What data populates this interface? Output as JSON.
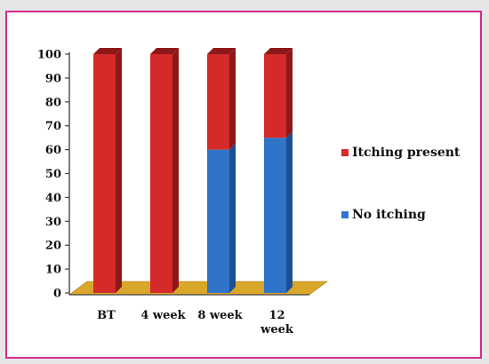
{
  "chart_data": {
    "type": "bar",
    "stacked": true,
    "three_d": true,
    "categories": [
      "BT",
      "4 week",
      "8 week",
      [
        "12",
        "week"
      ]
    ],
    "series": [
      {
        "name": "No itching",
        "values": [
          0,
          0,
          60,
          65
        ],
        "color": "#2f74c8",
        "dark": "#1b4f94"
      },
      {
        "name": "Itching present",
        "values": [
          100,
          100,
          40,
          35
        ],
        "color": "#d52a2a",
        "dark": "#8e1717"
      }
    ],
    "ylim": [
      0,
      100
    ],
    "yticks": [
      0,
      10,
      20,
      30,
      40,
      50,
      60,
      70,
      80,
      90,
      100
    ],
    "legend_position": "right",
    "legend_order": [
      "Itching present",
      "No itching"
    ],
    "grid": false,
    "floor_color": "#d9a72a"
  }
}
